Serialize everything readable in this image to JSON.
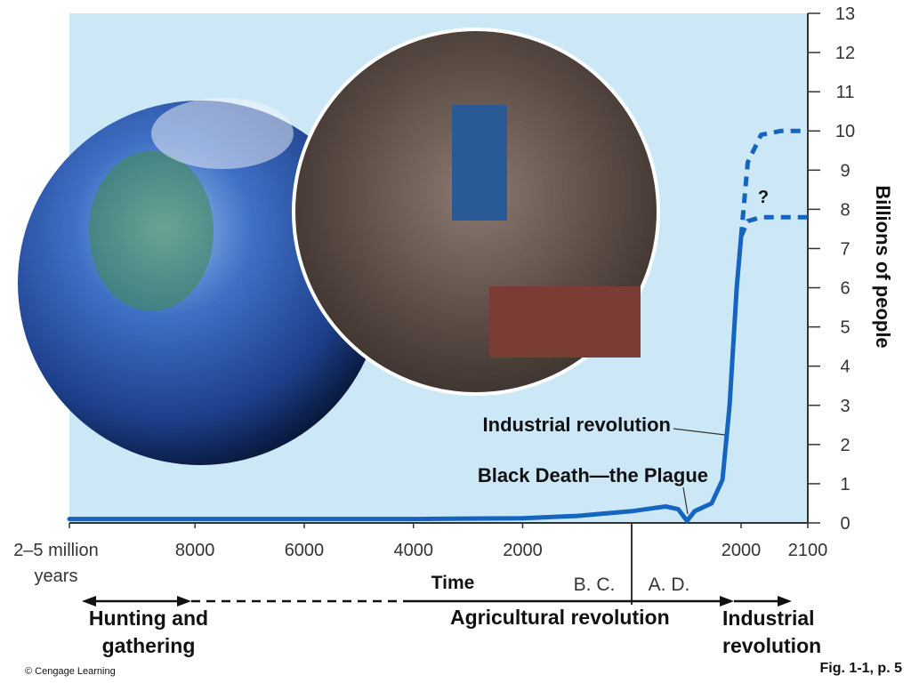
{
  "chart_data": {
    "type": "line",
    "xlim": [
      -10300,
      2100
    ],
    "xticks": [
      {
        "value": -10300,
        "label": "2–5 million years"
      },
      {
        "value": -8000,
        "label": "8000"
      },
      {
        "value": -6000,
        "label": "6000"
      },
      {
        "value": -4000,
        "label": "4000"
      },
      {
        "value": -2000,
        "label": "2000"
      },
      2000,
      2100
    ],
    "xlabel": "Time",
    "ylim": [
      0,
      13
    ],
    "yticks": [
      0,
      1,
      2,
      3,
      4,
      5,
      6,
      7,
      8,
      9,
      10,
      11,
      12,
      13
    ],
    "ylabel": "Billions of people",
    "series": [
      {
        "color": "#1565c0",
        "dashed": false,
        "x": [
          -10300,
          -8000,
          -6000,
          -4000,
          -2000,
          -1000,
          0,
          400,
          620,
          850,
          1010,
          1150,
          1460,
          1660,
          1790,
          1920,
          2000
        ],
        "values": [
          0.1,
          0.1,
          0.1,
          0.1,
          0.12,
          0.18,
          0.3,
          0.38,
          0.42,
          0.35,
          0.05,
          0.3,
          0.5,
          1.1,
          3,
          6,
          7.3
        ]
      },
      {
        "color": "#1565c0",
        "dashed": true,
        "x": [
          2000,
          2010,
          2030,
          2060,
          2100
        ],
        "values": [
          7.3,
          9.2,
          9.9,
          10,
          10
        ]
      },
      {
        "color": "#1565c0",
        "dashed": true,
        "x": [
          2000,
          2010,
          2030,
          2100
        ],
        "values": [
          7.3,
          7.7,
          7.8,
          7.8
        ]
      }
    ],
    "annotations": [
      "Industrial revolution",
      "Black Death—the Plague",
      "?"
    ],
    "era_labels": [
      "B. C.",
      "A. D."
    ],
    "periods": [
      "Hunting and gathering",
      "Agricultural revolution",
      "Industrial revolution"
    ],
    "credit": "© Cengage Learning",
    "figure": "Fig. 1-1, p. 5"
  }
}
